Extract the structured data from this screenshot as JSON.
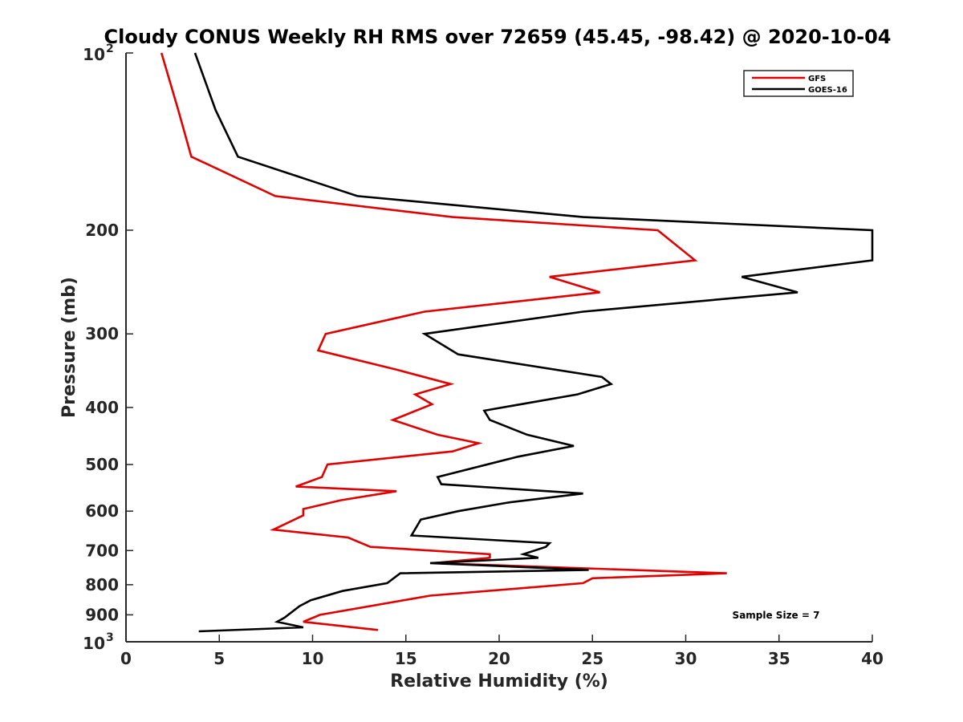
{
  "chart_data": {
    "type": "line",
    "title": "Cloudy CONUS Weekly RH RMS over 72659 (45.45, -98.42) @ 2020-10-04",
    "xlabel": "Relative Humidity (%)",
    "ylabel": "Pressure (mb)",
    "xlim": [
      0,
      40
    ],
    "ylim": [
      1000,
      100
    ],
    "y_scale": "log",
    "y_reversed": true,
    "grid": false,
    "legend_position": "top-right",
    "x_ticks": [
      "0",
      "5",
      "10",
      "15",
      "20",
      "25",
      "30",
      "35",
      "40"
    ],
    "y_ticks": [
      {
        "value": 100,
        "base": "10",
        "exp": "2"
      },
      {
        "value": 200,
        "label": "200"
      },
      {
        "value": 300,
        "label": "300"
      },
      {
        "value": 400,
        "label": "400"
      },
      {
        "value": 500,
        "label": "500"
      },
      {
        "value": 600,
        "label": "600"
      },
      {
        "value": 700,
        "label": "700"
      },
      {
        "value": 800,
        "label": "800"
      },
      {
        "value": 900,
        "label": "900"
      },
      {
        "value": 1000,
        "base": "10",
        "exp": "3"
      }
    ],
    "annotation": "Sample Size = 7",
    "series": [
      {
        "name": "GFS",
        "color": "#e00000",
        "points": [
          [
            1.9,
            100
          ],
          [
            2.8,
            125
          ],
          [
            3.5,
            150
          ],
          [
            8.0,
            175
          ],
          [
            17.5,
            190
          ],
          [
            28.5,
            200
          ],
          [
            30.5,
            225
          ],
          [
            22.7,
            240
          ],
          [
            25.4,
            255
          ],
          [
            16.0,
            275
          ],
          [
            10.7,
            300
          ],
          [
            10.3,
            320
          ],
          [
            14.5,
            345
          ],
          [
            17.4,
            365
          ],
          [
            15.5,
            380
          ],
          [
            16.4,
            395
          ],
          [
            14.3,
            420
          ],
          [
            16.7,
            445
          ],
          [
            18.9,
            460
          ],
          [
            17.5,
            475
          ],
          [
            10.8,
            500
          ],
          [
            10.5,
            525
          ],
          [
            9.1,
            545
          ],
          [
            14.5,
            555
          ],
          [
            11.5,
            575
          ],
          [
            9.5,
            595
          ],
          [
            9.5,
            610
          ],
          [
            7.9,
            645
          ],
          [
            11.9,
            665
          ],
          [
            13.1,
            690
          ],
          [
            19.5,
            710
          ],
          [
            19.5,
            720
          ],
          [
            16.5,
            735
          ],
          [
            32.2,
            765
          ],
          [
            25.0,
            780
          ],
          [
            24.5,
            795
          ],
          [
            16.3,
            835
          ],
          [
            10.4,
            900
          ],
          [
            9.5,
            925
          ],
          [
            13.5,
            955
          ]
        ]
      },
      {
        "name": "GOES-16",
        "color": "#000000",
        "points": [
          [
            3.7,
            100
          ],
          [
            4.8,
            125
          ],
          [
            6.0,
            150
          ],
          [
            12.4,
            175
          ],
          [
            24.5,
            190
          ],
          [
            40.0,
            200
          ],
          [
            40.0,
            225
          ],
          [
            33.0,
            240
          ],
          [
            36.0,
            255
          ],
          [
            24.5,
            275
          ],
          [
            16.0,
            300
          ],
          [
            17.8,
            325
          ],
          [
            25.5,
            355
          ],
          [
            26.0,
            365
          ],
          [
            24.2,
            380
          ],
          [
            19.2,
            405
          ],
          [
            19.5,
            420
          ],
          [
            21.5,
            445
          ],
          [
            24.0,
            465
          ],
          [
            21.0,
            485
          ],
          [
            16.7,
            525
          ],
          [
            16.9,
            540
          ],
          [
            24.5,
            560
          ],
          [
            20.5,
            580
          ],
          [
            17.8,
            600
          ],
          [
            15.8,
            620
          ],
          [
            15.3,
            660
          ],
          [
            22.7,
            680
          ],
          [
            22.5,
            690
          ],
          [
            21.3,
            710
          ],
          [
            22.1,
            720
          ],
          [
            16.3,
            735
          ],
          [
            24.8,
            755
          ],
          [
            14.7,
            765
          ],
          [
            14.0,
            795
          ],
          [
            11.6,
            820
          ],
          [
            9.9,
            850
          ],
          [
            9.3,
            870
          ],
          [
            8.5,
            910
          ],
          [
            8.1,
            925
          ],
          [
            9.5,
            945
          ],
          [
            3.9,
            960
          ]
        ]
      }
    ]
  }
}
